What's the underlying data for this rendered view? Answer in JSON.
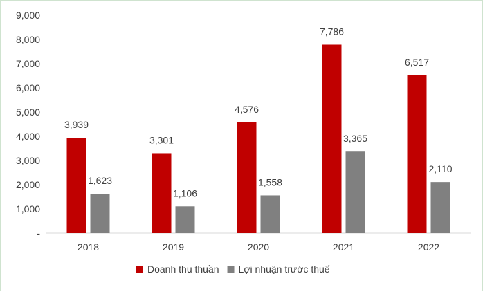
{
  "chart_data": {
    "type": "bar",
    "title": "",
    "xlabel": "",
    "ylabel": "",
    "categories": [
      "2018",
      "2019",
      "2020",
      "2021",
      "2022"
    ],
    "series": [
      {
        "name": "Doanh thu thuần",
        "color": "#c00000",
        "values": [
          3939,
          3301,
          4576,
          7786,
          6517
        ],
        "labels": [
          "3,939",
          "3,301",
          "4,576",
          "7,786",
          "6,517"
        ]
      },
      {
        "name": "Lợi nhuận trước thuế",
        "color": "#808080",
        "values": [
          1623,
          1106,
          1558,
          3365,
          2110
        ],
        "labels": [
          "1,623",
          "1,106",
          "1,558",
          "3,365",
          "2,110"
        ]
      }
    ],
    "ylim": [
      0,
      9000
    ],
    "yticks": [
      0,
      1000,
      2000,
      3000,
      4000,
      5000,
      6000,
      7000,
      8000,
      9000
    ],
    "ytick_labels": [
      "-",
      "1,000",
      "2,000",
      "3,000",
      "4,000",
      "5,000",
      "6,000",
      "7,000",
      "8,000",
      "9,000"
    ],
    "grid": false,
    "legend_position": "bottom"
  }
}
